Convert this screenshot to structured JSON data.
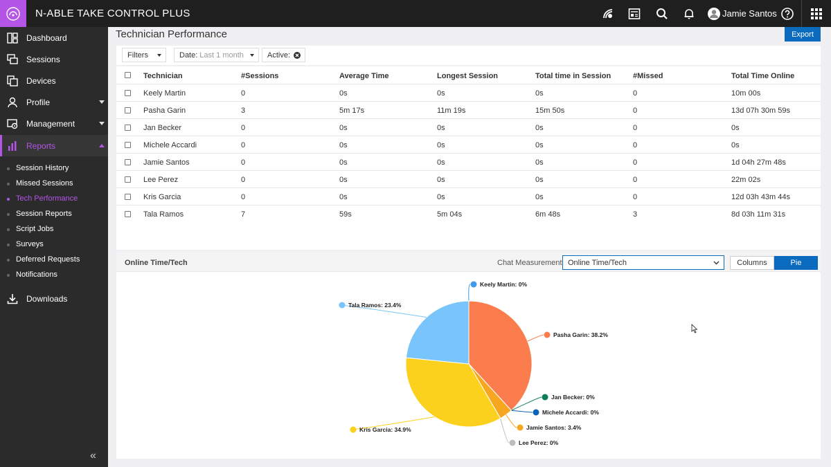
{
  "app": {
    "title": "N-ABLE TAKE CONTROL PLUS",
    "user_name": "Jamie Santos"
  },
  "topbar_icons": [
    "connect-icon",
    "report-card-icon",
    "search-icon",
    "bell-icon",
    "user-avatar-icon",
    "help-icon",
    "apps-grid-icon"
  ],
  "sidebar": {
    "items": [
      {
        "label": "Dashboard",
        "icon": "dashboard-icon"
      },
      {
        "label": "Sessions",
        "icon": "sessions-icon"
      },
      {
        "label": "Devices",
        "icon": "devices-icon"
      },
      {
        "label": "Profile",
        "icon": "profile-icon"
      },
      {
        "label": "Management",
        "icon": "management-icon"
      },
      {
        "label": "Reports",
        "icon": "reports-icon"
      },
      {
        "label": "Downloads",
        "icon": "download-icon"
      }
    ],
    "reports_sub": [
      "Session History",
      "Missed Sessions",
      "Tech Performance",
      "Session Reports",
      "Script Jobs",
      "Surveys",
      "Deferred Requests",
      "Notifications"
    ],
    "active_sub": "Tech Performance",
    "collapse_glyph": "«"
  },
  "page": {
    "title": "Technician Performance",
    "export_label": "Export"
  },
  "filters": {
    "filters_label": "Filters",
    "date_label": "Date:",
    "date_value": "Last 1 month",
    "active_label": "Active:"
  },
  "table": {
    "headers": [
      "Technician",
      "#Sessions",
      "Average Time",
      "Longest Session",
      "Total time in Session",
      "#Missed",
      "Total Time Online"
    ],
    "rows": [
      [
        "Keely Martin",
        "0",
        "0s",
        "0s",
        "0s",
        "0",
        "10m 00s"
      ],
      [
        "Pasha Garin",
        "3",
        "5m 17s",
        "11m 19s",
        "15m 50s",
        "0",
        "13d 07h 30m 59s"
      ],
      [
        "Jan Becker",
        "0",
        "0s",
        "0s",
        "0s",
        "0",
        "0s"
      ],
      [
        "Michele Accardi",
        "0",
        "0s",
        "0s",
        "0s",
        "0",
        "0s"
      ],
      [
        "Jamie Santos",
        "0",
        "0s",
        "0s",
        "0s",
        "0",
        "1d 04h 27m 48s"
      ],
      [
        "Lee Perez",
        "0",
        "0s",
        "0s",
        "0s",
        "0",
        "22m 02s"
      ],
      [
        "Kris Garcia",
        "0",
        "0s",
        "0s",
        "0s",
        "0",
        "12d 03h 43m 44s"
      ],
      [
        "Tala Ramos",
        "7",
        "59s",
        "5m 04s",
        "6m 48s",
        "3",
        "8d 03h 11m 31s"
      ]
    ]
  },
  "chart_panel": {
    "title": "Online Time/Tech",
    "measure_label": "Chat Measurement",
    "measure_value": "Online Time/Tech",
    "columns_label": "Columns",
    "pie_label": "Pie"
  },
  "chart_data": {
    "type": "pie",
    "slices": [
      {
        "name": "Keely Martin",
        "value": 0,
        "label": "Keely Martin: 0%",
        "color": "#3d9be9"
      },
      {
        "name": "Pasha Garin",
        "value": 38.2,
        "label": "Pasha Garin: 38.2%",
        "color": "#fb7c4c"
      },
      {
        "name": "Jan Becker",
        "value": 0,
        "label": "Jan Becker: 0%",
        "color": "#0c7c59"
      },
      {
        "name": "Michele Accardi",
        "value": 0,
        "label": "Michele Accardi: 0%",
        "color": "#0a64b8"
      },
      {
        "name": "Jamie Santos",
        "value": 3.4,
        "label": "Jamie Santos: 3.4%",
        "color": "#f7a71f"
      },
      {
        "name": "Lee Perez",
        "value": 0,
        "label": "Lee Perez: 0%",
        "color": "#bdbdbd"
      },
      {
        "name": "Kris Garcia",
        "value": 34.9,
        "label": "Kris Garcia: 34.9%",
        "color": "#fcd11d"
      },
      {
        "name": "Tala Ramos",
        "value": 23.4,
        "label": "Tala Ramos: 23.4%",
        "color": "#79c5fb"
      }
    ]
  }
}
